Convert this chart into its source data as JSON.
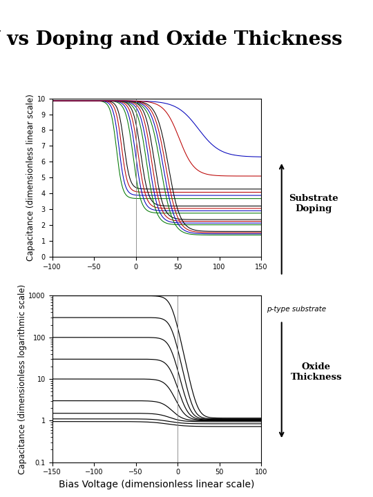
{
  "title": "CV vs Doping and Oxide Thickness",
  "title_fontsize": 20,
  "xlabel": "Bias Voltage (dimensionless linear scale)",
  "xlabel_fontsize": 10,
  "ylabel1": "Capacitance (dimensionless linear scale)",
  "ylabel2": "Capacitance (dimensionless logarithmic scale)",
  "ylabel_fontsize": 8.5,
  "plot1_xlim": [
    -100,
    150
  ],
  "plot1_ylim": [
    0,
    10
  ],
  "plot1_xticks": [
    -100,
    -50,
    0,
    50,
    100,
    150
  ],
  "plot1_yticks": [
    0,
    1,
    2,
    3,
    4,
    5,
    6,
    7,
    8,
    9,
    10
  ],
  "plot2_xlim": [
    -150,
    100
  ],
  "plot2_ylim_log": [
    0.1,
    1000
  ],
  "plot2_xticks": [
    -150,
    -100,
    -50,
    0,
    50,
    100
  ],
  "annotation_ptype": "p-type substrate",
  "annotation_doping": "Substrate\nDoping",
  "annotation_oxide": "Oxide\nThickness",
  "background_color": "#ffffff",
  "colors4": [
    "#007700",
    "#0000bb",
    "#bb0000",
    "#000000"
  ]
}
